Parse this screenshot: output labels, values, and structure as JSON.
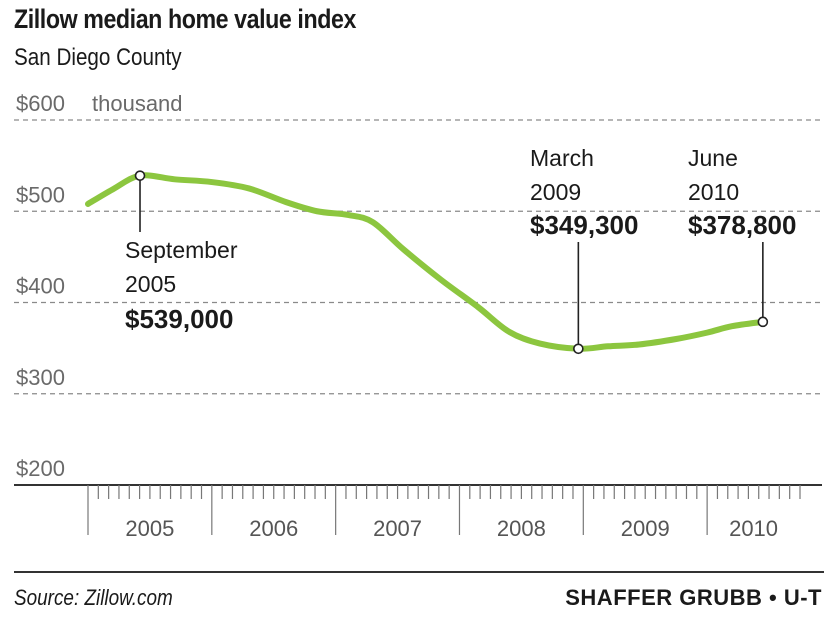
{
  "chart_data": {
    "type": "line",
    "title": "Zillow median home value index",
    "subtitle": "San Diego County",
    "y_unit_label": "thousand",
    "y_ticks": [
      {
        "value": 600,
        "label": "$600"
      },
      {
        "value": 500,
        "label": "$500"
      },
      {
        "value": 400,
        "label": "$400"
      },
      {
        "value": 300,
        "label": "$300"
      },
      {
        "value": 200,
        "label": "$200"
      }
    ],
    "ylim": [
      200,
      600
    ],
    "xlim": [
      2005.0,
      2010.75
    ],
    "grid": true,
    "x_years": [
      "2005",
      "2006",
      "2007",
      "2008",
      "2009",
      "2010"
    ],
    "series": [
      {
        "color": "#8cc63f",
        "points": [
          [
            2005.0,
            508
          ],
          [
            2005.2,
            524
          ],
          [
            2005.42,
            539
          ],
          [
            2005.7,
            535
          ],
          [
            2006.0,
            532
          ],
          [
            2006.3,
            525
          ],
          [
            2006.6,
            510
          ],
          [
            2006.85,
            500
          ],
          [
            2007.1,
            496
          ],
          [
            2007.3,
            488
          ],
          [
            2007.55,
            458
          ],
          [
            2007.85,
            425
          ],
          [
            2008.15,
            395
          ],
          [
            2008.4,
            368
          ],
          [
            2008.65,
            355
          ],
          [
            2008.96,
            349.3
          ],
          [
            2009.2,
            352
          ],
          [
            2009.45,
            354
          ],
          [
            2009.75,
            360
          ],
          [
            2010.0,
            367
          ],
          [
            2010.2,
            374
          ],
          [
            2010.45,
            378.8
          ]
        ]
      }
    ],
    "annotations": [
      {
        "x": 2005.42,
        "y": 539,
        "month": "September",
        "year": "2005",
        "value": "$539,000"
      },
      {
        "x": 2008.96,
        "y": 349.3,
        "month": "March",
        "year": "2009",
        "value": "$349,300"
      },
      {
        "x": 2010.45,
        "y": 378.8,
        "month": "June",
        "year": "2010",
        "value": "$378,800"
      }
    ]
  },
  "footer": {
    "source": "Source: Zillow.com",
    "credit": "SHAFFER GRUBB • U-T"
  }
}
